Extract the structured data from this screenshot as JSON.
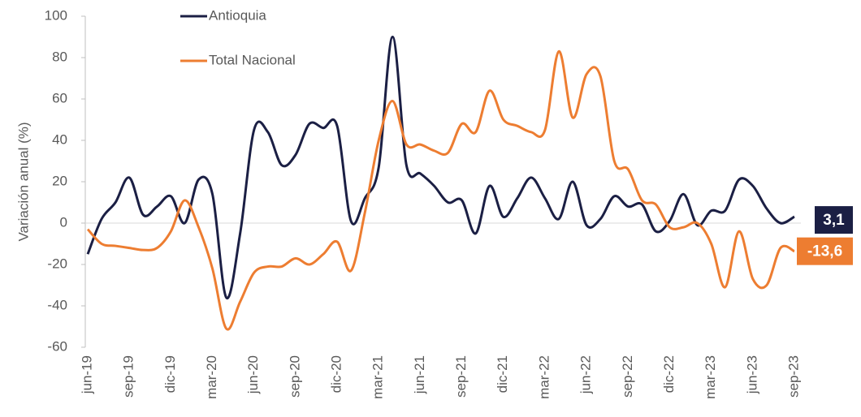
{
  "chart_data": {
    "type": "line",
    "y_label": "Variación anual (%)",
    "categories": [
      "jun-19",
      null,
      null,
      "sep-19",
      null,
      null,
      "dic-19",
      null,
      null,
      "mar-20",
      null,
      null,
      "jun-20",
      null,
      null,
      "sep-20",
      null,
      null,
      "dic-20",
      null,
      null,
      "mar-21",
      null,
      null,
      "jun-21",
      null,
      null,
      "sep-21",
      null,
      null,
      "dic-21",
      null,
      null,
      "mar-22",
      null,
      null,
      "jun-22",
      null,
      null,
      "sep-22",
      null,
      null,
      "dic-22",
      null,
      null,
      "mar-23",
      null,
      null,
      "jun-23",
      null,
      null,
      "sep-23"
    ],
    "series": [
      {
        "name": "Antioquia",
        "color": "#1b1f44",
        "values": [
          -15,
          2,
          10,
          22,
          4,
          8,
          13,
          0,
          21,
          14,
          -36,
          -5,
          45,
          44,
          28,
          33,
          48,
          46,
          47,
          1,
          12,
          27,
          90,
          28,
          24,
          18,
          10,
          11,
          -5,
          18,
          3,
          12,
          22,
          12,
          2,
          20,
          -1,
          2,
          13,
          8,
          9,
          -4,
          1,
          14,
          -1,
          6,
          6,
          21,
          18,
          7,
          0,
          3.1
        ],
        "value_labels": [
          null,
          null,
          null,
          null,
          null,
          null,
          null,
          null,
          null,
          null,
          null,
          null,
          null,
          null,
          null,
          null,
          null,
          null,
          null,
          null,
          null,
          null,
          null,
          null,
          null,
          null,
          null,
          null,
          null,
          null,
          null,
          null,
          null,
          null,
          null,
          null,
          null,
          null,
          null,
          null,
          null,
          null,
          null,
          null,
          null,
          null,
          null,
          null,
          null,
          null,
          null,
          "3,1"
        ]
      },
      {
        "name": "Total Nacional",
        "color": "#ed7d31",
        "values": [
          -3,
          -10,
          -11,
          -12,
          -13,
          -12,
          -4,
          11,
          -2,
          -22,
          -51,
          -38,
          -24,
          -21,
          -21,
          -17,
          -20,
          -15,
          -9,
          -23,
          5,
          40,
          59,
          38,
          38,
          35,
          34,
          48,
          44,
          64,
          50,
          47,
          44,
          45,
          83,
          51,
          72,
          71,
          30,
          26,
          11,
          9,
          -2,
          -2,
          0,
          -10,
          -31,
          -4,
          -27,
          -30,
          -12,
          -13.6
        ],
        "value_labels": [
          null,
          null,
          null,
          null,
          null,
          null,
          null,
          null,
          null,
          null,
          null,
          null,
          null,
          null,
          null,
          null,
          null,
          null,
          null,
          null,
          null,
          null,
          null,
          null,
          null,
          null,
          null,
          null,
          null,
          null,
          null,
          null,
          null,
          null,
          null,
          null,
          null,
          null,
          null,
          null,
          null,
          null,
          null,
          null,
          null,
          null,
          null,
          null,
          null,
          null,
          null,
          "-13,6"
        ]
      }
    ],
    "ylim": [
      -60,
      100
    ],
    "yticks": [
      -60,
      -40,
      -20,
      0,
      20,
      40,
      60,
      80,
      100
    ]
  }
}
